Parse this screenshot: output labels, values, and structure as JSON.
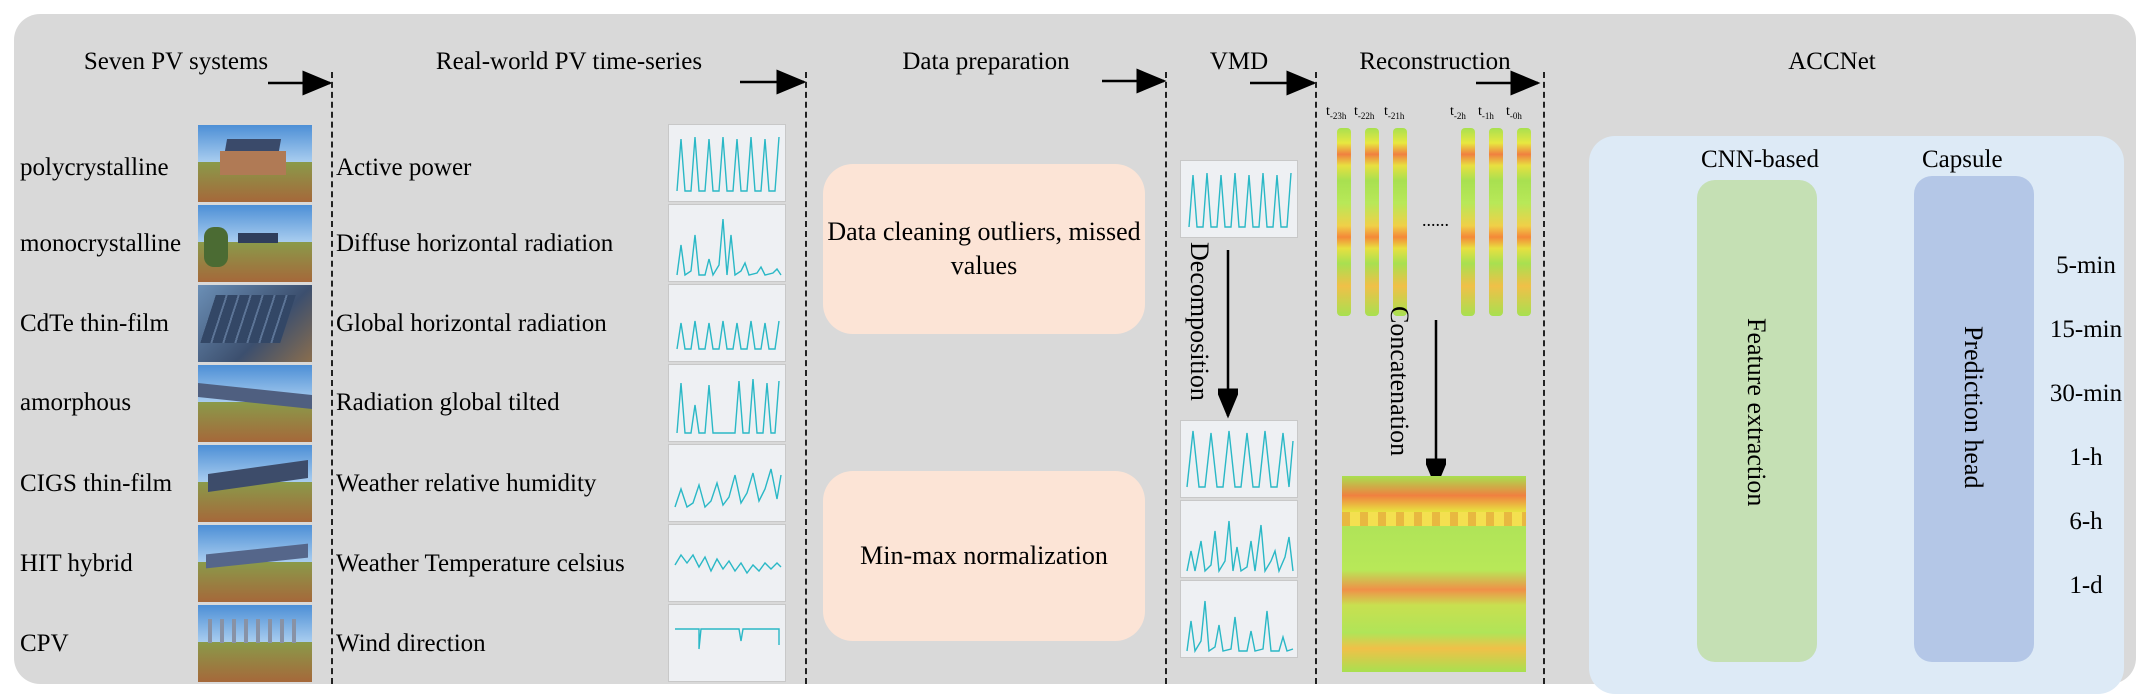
{
  "headers": {
    "systems": "Seven PV systems",
    "timeseries": "Real-world PV time-series",
    "preparation": "Data preparation",
    "vmd": "VMD",
    "reconstruction": "Reconstruction",
    "accnet": "ACCNet"
  },
  "pv_systems": [
    "polycrystalline",
    "monocrystalline",
    "CdTe thin-film",
    "amorphous",
    "CIGS thin-film",
    "HIT hybrid",
    "CPV"
  ],
  "time_series": [
    "Active power",
    "Diffuse horizontal radiation",
    "Global horizontal radiation",
    "Radiation global tilted",
    "Weather relative humidity",
    "Weather Temperature celsius",
    "Wind direction"
  ],
  "preparation": {
    "cleaning": "Data cleaning outliers, missed values",
    "normalization": "Min-max normalization"
  },
  "vmd": {
    "decomposition": "Decomposition"
  },
  "reconstruction": {
    "time_steps": [
      {
        "base": "t",
        "sub": "-23h"
      },
      {
        "base": "t",
        "sub": "-22h"
      },
      {
        "base": "t",
        "sub": "-21h"
      },
      {
        "base": "t",
        "sub": "-2h"
      },
      {
        "base": "t",
        "sub": "-1h"
      },
      {
        "base": "t",
        "sub": "-0h"
      }
    ],
    "ellipsis": "......",
    "concatenation": "Concatenation"
  },
  "accnet": {
    "cnn_title": "CNN-based",
    "cnn_body": "Feature extraction",
    "capsule_title": "Capsule",
    "capsule_body": "Prediction head",
    "horizons": [
      "5-min",
      "15-min",
      "30-min",
      "1-h",
      "6-h",
      "1-d"
    ]
  },
  "colors": {
    "panel": "#d9d9d9",
    "prep_box": "#fce4d6",
    "accnet_box": "#ddeaf6",
    "cnn_box": "#c5e0b4",
    "capsule_box": "#b4c7e7",
    "series_line": "#2ab8c6"
  }
}
